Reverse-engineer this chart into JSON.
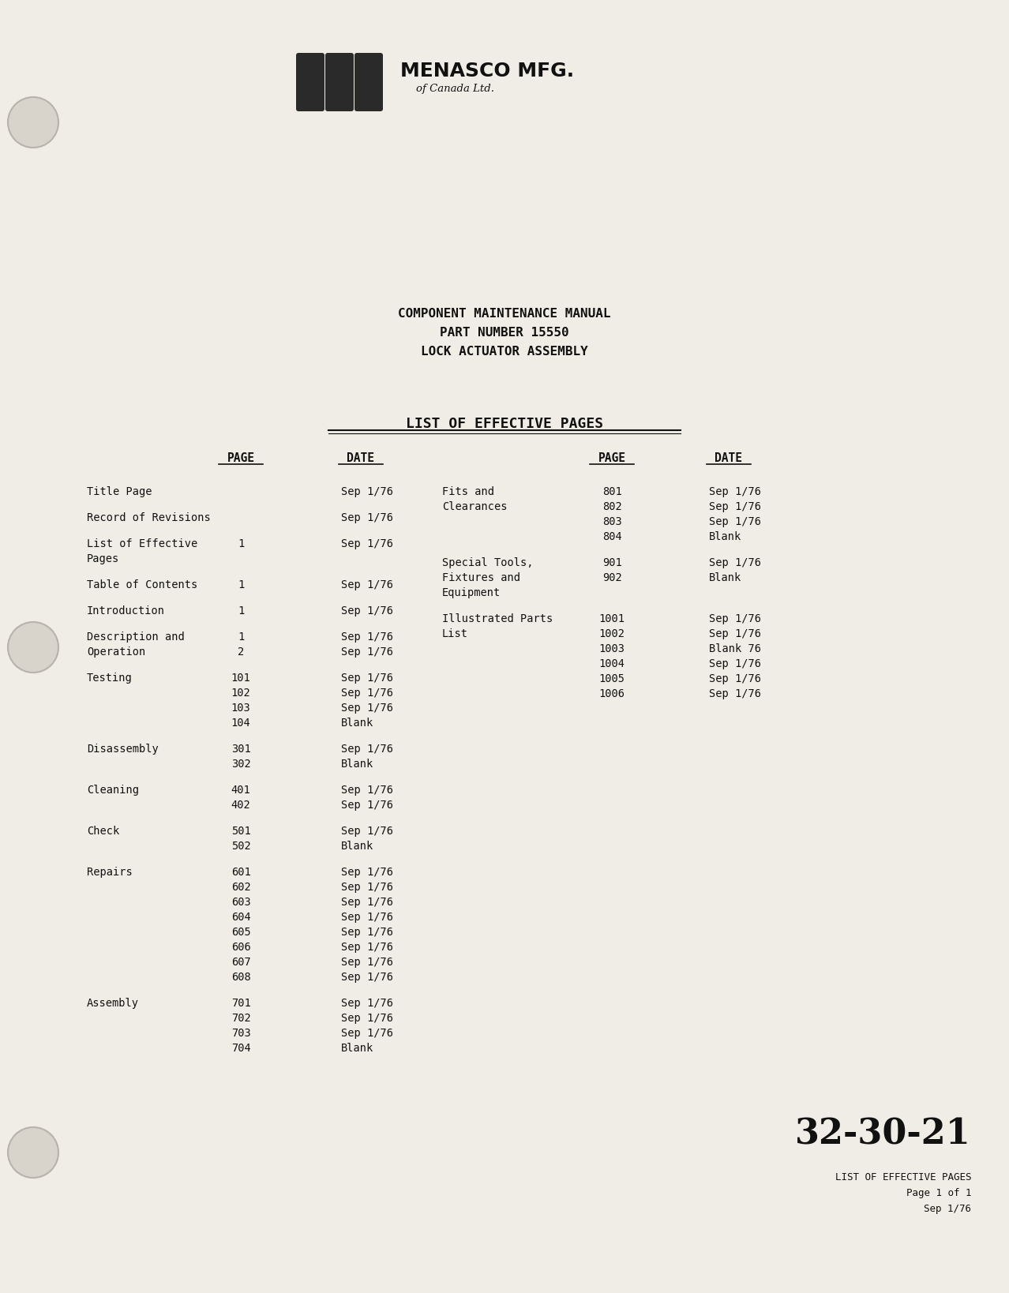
{
  "bg_color": "#f0ede6",
  "text_color": "#111111",
  "title_lines": [
    "COMPONENT MAINTENANCE MANUAL",
    "PART NUMBER 15550",
    "LOCK ACTUATOR ASSEMBLY"
  ],
  "section_title": "LIST OF EFFECTIVE PAGES",
  "left_entries": [
    {
      "section": "Title Page",
      "pages": [
        ""
      ],
      "dates": [
        "Sep 1/76"
      ]
    },
    {
      "section": "Record of Revisions",
      "pages": [
        ""
      ],
      "dates": [
        "Sep 1/76"
      ]
    },
    {
      "section": "List of Effective\nPages",
      "pages": [
        "1",
        ""
      ],
      "dates": [
        "Sep 1/76",
        ""
      ]
    },
    {
      "section": "Table of Contents",
      "pages": [
        "1"
      ],
      "dates": [
        "Sep 1/76"
      ]
    },
    {
      "section": "Introduction",
      "pages": [
        "1"
      ],
      "dates": [
        "Sep 1/76"
      ]
    },
    {
      "section": "Description and\nOperation",
      "pages": [
        "1",
        "2"
      ],
      "dates": [
        "Sep 1/76",
        "Sep 1/76"
      ]
    },
    {
      "section": "Testing",
      "pages": [
        "101",
        "102",
        "103",
        "104"
      ],
      "dates": [
        "Sep 1/76",
        "Sep 1/76",
        "Sep 1/76",
        "Blank"
      ]
    },
    {
      "section": "Disassembly",
      "pages": [
        "301",
        "302"
      ],
      "dates": [
        "Sep 1/76",
        "Blank"
      ]
    },
    {
      "section": "Cleaning",
      "pages": [
        "401",
        "402"
      ],
      "dates": [
        "Sep 1/76",
        "Sep 1/76"
      ]
    },
    {
      "section": "Check",
      "pages": [
        "501",
        "502"
      ],
      "dates": [
        "Sep 1/76",
        "Blank"
      ]
    },
    {
      "section": "Repairs",
      "pages": [
        "601",
        "602",
        "603",
        "604",
        "605",
        "606",
        "607",
        "608"
      ],
      "dates": [
        "Sep 1/76",
        "Sep 1/76",
        "Sep 1/76",
        "Sep 1/76",
        "Sep 1/76",
        "Sep 1/76",
        "Sep 1/76",
        "Sep 1/76"
      ]
    },
    {
      "section": "Assembly",
      "pages": [
        "701",
        "702",
        "703",
        "704"
      ],
      "dates": [
        "Sep 1/76",
        "Sep 1/76",
        "Sep 1/76",
        "Blank"
      ]
    }
  ],
  "right_entries": [
    {
      "section": "Fits and\nClearances",
      "pages": [
        "801",
        "802",
        "803",
        "804"
      ],
      "dates": [
        "Sep 1/76",
        "Sep 1/76",
        "Sep 1/76",
        "Blank"
      ]
    },
    {
      "section": "Special Tools,\nFixtures and\nEquipment",
      "pages": [
        "901",
        "902"
      ],
      "dates": [
        "Sep 1/76",
        "Blank"
      ]
    },
    {
      "section": "Illustrated Parts\nList",
      "pages": [
        "1001",
        "1002",
        "1003",
        "1004",
        "1005",
        "1006"
      ],
      "dates": [
        "Sep 1/76",
        "Sep 1/76",
        "Blank 76",
        "Sep 1/76",
        "Sep 1/76",
        "Sep 1/76"
      ]
    }
  ],
  "footer_large": "32-30-21",
  "footer_line1": "LIST OF EFFECTIVE PAGES",
  "footer_line2": "Page 1 of 1",
  "footer_line3": "Sep 1/76",
  "logo_rect_color": "#2a2a2a",
  "hole_color": "#d8d4cc",
  "hole_edge_color": "#b8b4ac"
}
